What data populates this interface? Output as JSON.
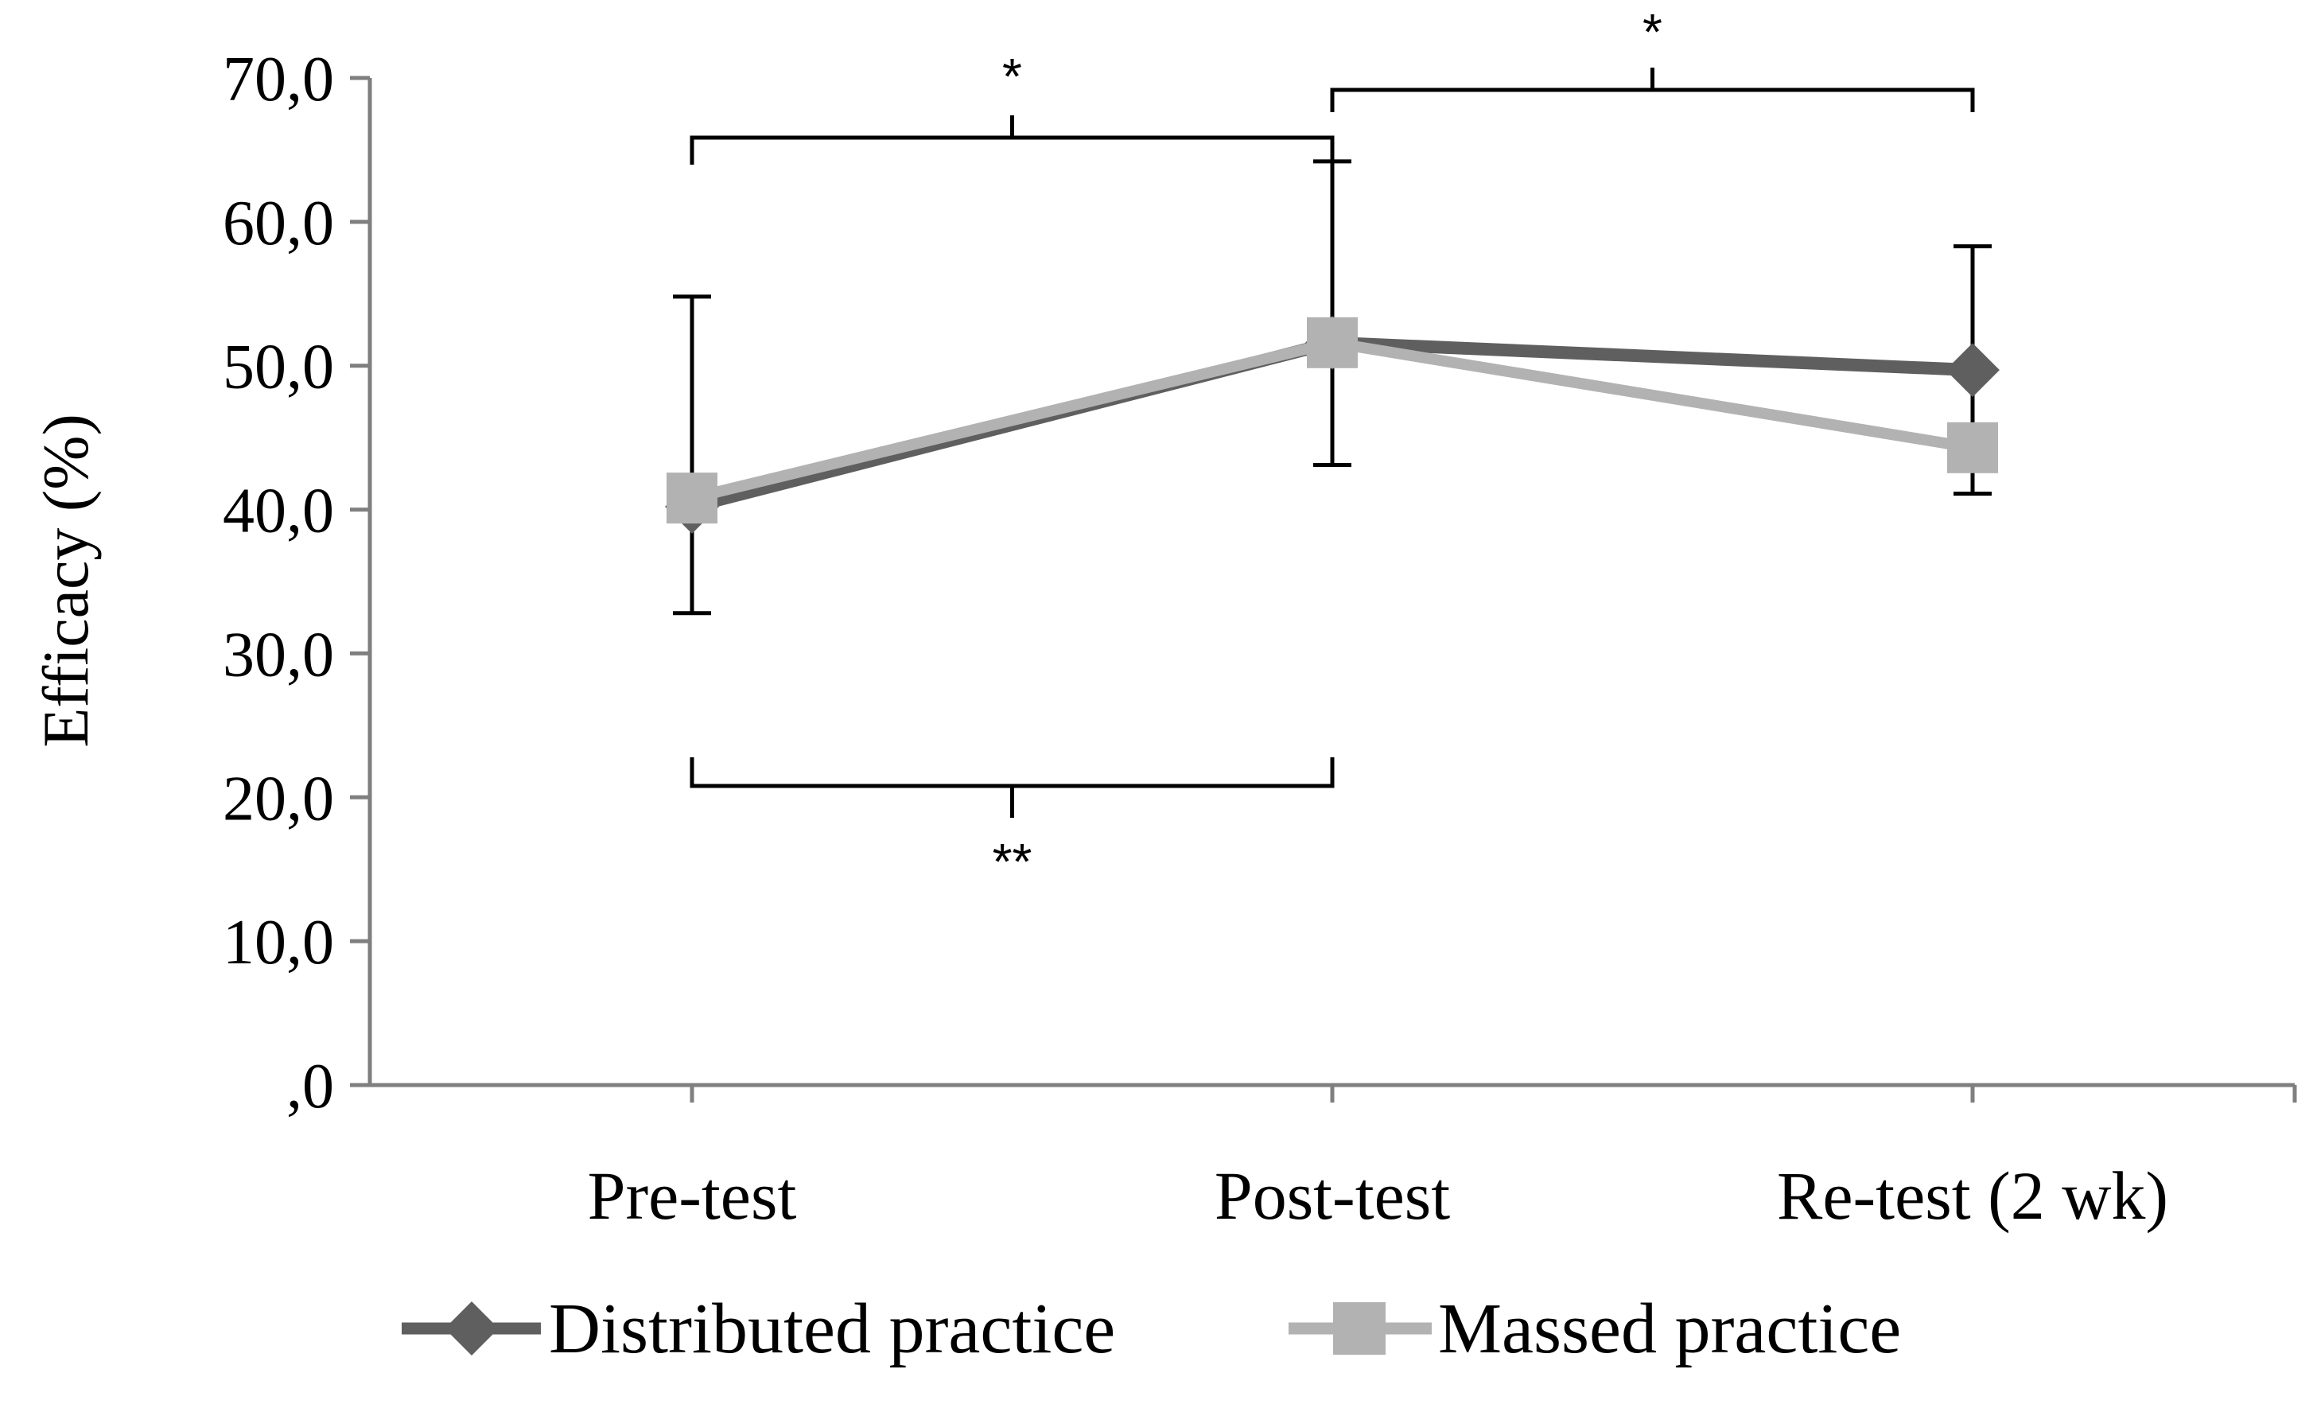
{
  "chart_data": {
    "type": "line",
    "ylabel": "Efficacy  (%)",
    "xlabel": "",
    "categories": [
      "Pre-test",
      "Post-test",
      "Re-test (2 wk)"
    ],
    "ylim": [
      0,
      70
    ],
    "yticks": [
      0,
      10,
      20,
      30,
      40,
      50,
      60,
      70
    ],
    "ytick_labels": [
      ",0",
      "10,0",
      "20,0",
      "30,0",
      "40,0",
      "50,0",
      "60,0",
      "70,0"
    ],
    "grid": false,
    "legend_position": "bottom",
    "series": [
      {
        "name": "Distributed practice",
        "values": [
          40.2,
          51.6,
          49.7
        ],
        "error_high": [
          54.8,
          64.2,
          58.3
        ],
        "error_low": [
          32.8,
          43.1,
          41.1
        ],
        "marker": "diamond",
        "color": "#5f5f5f"
      },
      {
        "name": "Massed practice",
        "values": [
          40.8,
          51.6,
          44.3
        ],
        "marker": "square",
        "color": "#b2b2b2"
      }
    ],
    "significance": [
      {
        "label": "*",
        "from": "Pre-test",
        "to": "Post-test",
        "side": "above"
      },
      {
        "label": "*",
        "from": "Post-test",
        "to": "Re-test (2 wk)",
        "side": "above"
      },
      {
        "label": "**",
        "from": "Pre-test",
        "to": "Post-test",
        "side": "below"
      }
    ]
  }
}
